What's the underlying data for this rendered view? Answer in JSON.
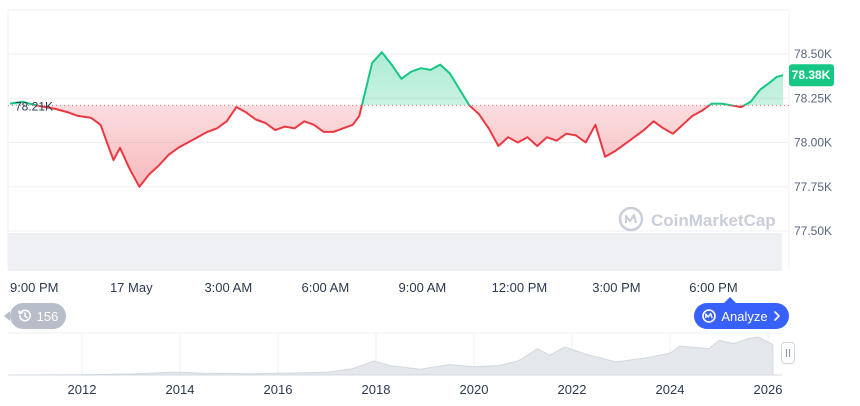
{
  "colors": {
    "up": "#16c784",
    "down": "#ea3943",
    "grid": "#eef0f4",
    "axis_text": "#58667e",
    "baseline": "#ea3943"
  },
  "chart_data": [
    {
      "type": "area",
      "baseline": 78.21,
      "baseline_label": "78.21K",
      "current_label": "78.38K",
      "x_ticks": [
        "9:00 PM",
        "17 May",
        "3:00 AM",
        "6:00 AM",
        "9:00 AM",
        "12:00 PM",
        "3:00 PM",
        "6:00 PM"
      ],
      "y_ticks": [
        "78.50K",
        "78.25K",
        "78.00K",
        "77.75K",
        "77.50K"
      ],
      "y_tick_values": [
        78.5,
        78.25,
        78.0,
        77.75,
        77.5
      ],
      "ylim": [
        77.5,
        78.5
      ],
      "ylabel_unit": "K",
      "series": [
        {
          "x_hours": [
            0,
            0.4,
            0.8,
            1.1,
            1.4,
            1.8,
            2.1,
            2.5,
            2.8,
            3.0,
            3.2,
            3.4,
            3.7,
            4.0,
            4.3,
            4.6,
            4.9,
            5.2,
            5.5,
            5.8,
            6.1,
            6.4,
            6.7,
            7.0,
            7.3,
            7.6,
            7.9,
            8.2,
            8.5,
            8.8,
            9.1,
            9.4,
            9.7,
            10.0,
            10.3,
            10.6,
            10.8,
            11.0,
            11.2,
            11.5,
            11.8,
            12.1,
            12.4,
            12.7,
            13.0,
            13.3,
            13.6,
            13.9,
            14.2,
            14.5,
            14.8,
            15.1,
            15.4,
            15.7,
            16.0,
            16.3,
            16.6,
            16.9,
            17.2,
            17.5,
            17.8,
            18.1,
            18.4,
            18.7,
            19.0,
            19.3,
            19.6,
            19.9,
            20.2,
            20.5,
            20.8,
            21.1,
            21.4,
            21.7,
            22.0,
            22.3,
            22.6,
            22.9,
            23.2,
            23.5,
            23.7,
            23.9
          ],
          "values": [
            78.22,
            78.23,
            78.21,
            78.2,
            78.19,
            78.17,
            78.15,
            78.14,
            78.1,
            78.0,
            77.9,
            77.97,
            77.85,
            77.75,
            77.82,
            77.87,
            77.93,
            77.97,
            78.0,
            78.03,
            78.06,
            78.08,
            78.12,
            78.2,
            78.17,
            78.13,
            78.11,
            78.07,
            78.09,
            78.08,
            78.12,
            78.1,
            78.06,
            78.06,
            78.08,
            78.1,
            78.15,
            78.3,
            78.45,
            78.51,
            78.44,
            78.36,
            78.4,
            78.42,
            78.41,
            78.44,
            78.39,
            78.3,
            78.21,
            78.16,
            78.08,
            77.98,
            78.03,
            78.0,
            78.03,
            77.98,
            78.03,
            78.01,
            78.05,
            78.04,
            78.0,
            78.1,
            77.92,
            77.95,
            77.99,
            78.03,
            78.07,
            78.12,
            78.08,
            78.05,
            78.1,
            78.15,
            78.18,
            78.22,
            78.22,
            78.21,
            78.2,
            78.23,
            78.3,
            78.34,
            78.37,
            78.38
          ]
        }
      ]
    },
    {
      "type": "area",
      "x_ticks": [
        "2012",
        "2014",
        "2016",
        "2018",
        "2020",
        "2022",
        "2024",
        "2026"
      ],
      "series": [
        {
          "x_years": [
            2010.0,
            2012.0,
            2013.0,
            2013.9,
            2014.5,
            2015.5,
            2016.5,
            2017.0,
            2017.5,
            2017.96,
            2018.3,
            2018.9,
            2019.5,
            2020.0,
            2020.5,
            2020.9,
            2021.3,
            2021.55,
            2021.85,
            2022.3,
            2022.9,
            2023.5,
            2024.0,
            2024.2,
            2024.8,
            2025.0,
            2025.3,
            2025.6,
            2025.8,
            2026.1
          ],
          "values": [
            0,
            12,
            150,
            1100,
            450,
            250,
            650,
            1000,
            4000,
            19000,
            9000,
            3700,
            11000,
            7200,
            9200,
            19000,
            59000,
            35000,
            67000,
            38000,
            16500,
            27000,
            42000,
            70000,
            60000,
            98000,
            82000,
            108000,
            116000,
            78000
          ]
        }
      ]
    }
  ],
  "controls": {
    "history_count": "156",
    "analyze_label": "Analyze"
  },
  "watermark": "CoinMarketCap"
}
